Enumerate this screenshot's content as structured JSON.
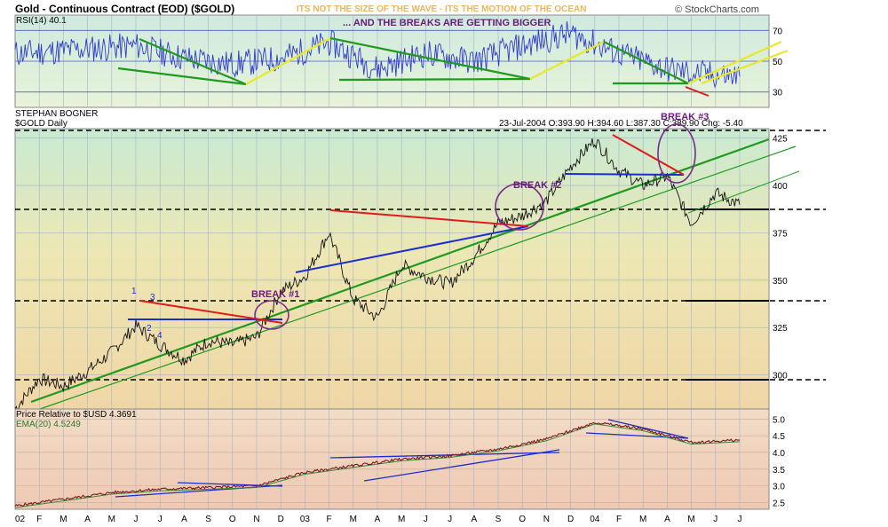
{
  "header": {
    "title": "Gold - Continuous Contract (EOD) ($GOLD)",
    "subtitle": "ITS NOT THE SIZE OF THE WAVE - ITS THE MOTION OF THE OCEAN",
    "copyright": "© StockCharts.com"
  },
  "rsi_panel": {
    "label": "RSI(14) 40.1",
    "annotation": "... AND THE BREAKS ARE GETTING BIGGER",
    "ticks": [
      "70",
      "50",
      "30"
    ]
  },
  "price_panel": {
    "author": "STEPHAN BOGNER",
    "symbol": "$GOLD Daily",
    "quote": "23-Jul-2004 O:393.90 H:394.60 L:387.30 C:389.90 Chg: -5.40",
    "ticks": [
      "425",
      "400",
      "375",
      "350",
      "325",
      "300"
    ],
    "annotations": {
      "break1": "BREAK #1",
      "break2": "BREAK #2",
      "break3": "BREAK #3",
      "n1": "1",
      "n2": "2",
      "n3": "3",
      "n4": "4"
    }
  },
  "relative_panel": {
    "label": "Price Relative to $USD 4.3691",
    "ema": "EMA(20) 4.5249",
    "ticks": [
      "5.0",
      "4.5",
      "4.0",
      "3.5",
      "3.0",
      "2.5"
    ]
  },
  "x_axis": {
    "ticks": [
      "02",
      "F",
      "M",
      "A",
      "M",
      "J",
      "J",
      "A",
      "S",
      "O",
      "N",
      "D",
      "03",
      "F",
      "M",
      "A",
      "M",
      "J",
      "J",
      "A",
      "S",
      "O",
      "N",
      "D",
      "04",
      "F",
      "M",
      "A",
      "M",
      "J",
      "J"
    ]
  },
  "colors": {
    "title": "#000000",
    "subtitle": "#f2b35b",
    "annotation": "#6a1a7a",
    "support_line": "#1a2ed0",
    "resistance_line": "#e01b1b",
    "trend_line": "#1f9a1f",
    "rsi_up_line": "#e8e82a",
    "price": "#111111",
    "ema": "#3a8a3a"
  },
  "chart_data": [
    {
      "type": "line",
      "name": "RSI(14)",
      "ylim": [
        20,
        80
      ],
      "reference_lines": [
        70,
        50,
        30
      ],
      "x": [
        "2002-01",
        "2002-04",
        "2002-06",
        "2002-08",
        "2002-10",
        "2002-12",
        "2003-02",
        "2003-04",
        "2003-06",
        "2003-08",
        "2003-10",
        "2003-12",
        "2004-02",
        "2004-04",
        "2004-05",
        "2004-07"
      ],
      "values": [
        55,
        58,
        60,
        52,
        48,
        52,
        62,
        45,
        55,
        50,
        60,
        68,
        55,
        45,
        42,
        40.1
      ]
    },
    {
      "type": "line",
      "name": "$GOLD Daily",
      "ylim": [
        282,
        430
      ],
      "x": [
        "2002-01",
        "2002-02",
        "2002-03",
        "2002-04",
        "2002-05",
        "2002-06",
        "2002-07",
        "2002-08",
        "2002-09",
        "2002-10",
        "2002-11",
        "2002-12",
        "2003-01",
        "2003-02",
        "2003-03",
        "2003-04",
        "2003-05",
        "2003-06",
        "2003-07",
        "2003-08",
        "2003-09",
        "2003-10",
        "2003-11",
        "2003-12",
        "2004-01",
        "2004-02",
        "2004-03",
        "2004-04",
        "2004-05",
        "2004-06",
        "2004-07"
      ],
      "values": [
        282,
        298,
        294,
        302,
        312,
        326,
        316,
        308,
        318,
        316,
        320,
        344,
        352,
        375,
        340,
        330,
        358,
        352,
        348,
        362,
        380,
        384,
        392,
        410,
        424,
        408,
        400,
        405,
        380,
        396,
        389.9
      ]
    },
    {
      "type": "line",
      "name": "Price Relative to $USD",
      "ylim": [
        2.3,
        5.3
      ],
      "x": [
        "2002-01",
        "2002-03",
        "2002-05",
        "2002-07",
        "2002-09",
        "2002-11",
        "2003-01",
        "2003-03",
        "2003-05",
        "2003-07",
        "2003-09",
        "2003-11",
        "2004-01",
        "2004-03",
        "2004-05",
        "2004-07"
      ],
      "values": [
        2.4,
        2.6,
        2.8,
        2.9,
        2.95,
        3.0,
        3.4,
        3.6,
        3.8,
        3.9,
        4.1,
        4.4,
        4.9,
        4.7,
        4.3,
        4.3691
      ],
      "ema_last": 4.5249
    }
  ]
}
